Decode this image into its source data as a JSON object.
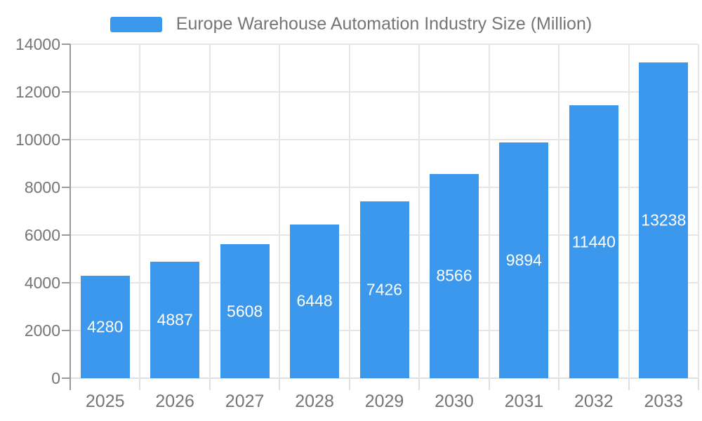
{
  "chart_data": {
    "type": "bar",
    "title": "Europe Warehouse Automation Industry Size (Million)",
    "legend_entries": [
      "Europe Warehouse Automation Industry Size (Million)"
    ],
    "legend_position": "top",
    "categories": [
      "2025",
      "2026",
      "2027",
      "2028",
      "2029",
      "2030",
      "2031",
      "2032",
      "2033"
    ],
    "values": [
      4280,
      4887,
      5608,
      6448,
      7426,
      8566,
      9894,
      11440,
      13238
    ],
    "xlabel": "",
    "ylabel": "",
    "ylim": [
      0,
      14000
    ],
    "y_ticks": [
      0,
      2000,
      4000,
      6000,
      8000,
      10000,
      12000,
      14000
    ],
    "grid": true,
    "value_labels_inside_bars": true,
    "colors": {
      "bar": "#3b98ec",
      "value_label_text": "#ffffff",
      "axis_text": "#757575",
      "gridline": "#e6e6e6",
      "y_axis_line": "#999999",
      "x_axis_line": "#e0e0e0",
      "background": "#ffffff"
    }
  }
}
